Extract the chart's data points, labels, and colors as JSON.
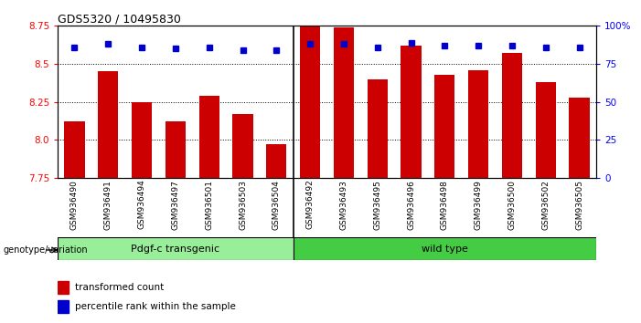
{
  "title": "GDS5320 / 10495830",
  "categories": [
    "GSM936490",
    "GSM936491",
    "GSM936494",
    "GSM936497",
    "GSM936501",
    "GSM936503",
    "GSM936504",
    "GSM936492",
    "GSM936493",
    "GSM936495",
    "GSM936496",
    "GSM936498",
    "GSM936499",
    "GSM936500",
    "GSM936502",
    "GSM936505"
  ],
  "bar_values": [
    8.12,
    8.45,
    8.25,
    8.12,
    8.29,
    8.17,
    7.97,
    8.75,
    8.74,
    8.4,
    8.62,
    8.43,
    8.46,
    8.57,
    8.38,
    8.28
  ],
  "percentile_values": [
    86,
    88,
    86,
    85,
    86,
    84,
    84,
    88,
    88,
    86,
    89,
    87,
    87,
    87,
    86,
    86
  ],
  "bar_color": "#cc0000",
  "percentile_color": "#0000cc",
  "ylim_left": [
    7.75,
    8.75
  ],
  "ylim_right": [
    0,
    100
  ],
  "yticks_left": [
    7.75,
    8.0,
    8.25,
    8.5,
    8.75
  ],
  "yticks_right": [
    0,
    25,
    50,
    75,
    100
  ],
  "ytick_labels_right": [
    "0",
    "25",
    "50",
    "75",
    "100%"
  ],
  "grid_values": [
    8.0,
    8.25,
    8.5
  ],
  "group1_label": "Pdgf-c transgenic",
  "group2_label": "wild type",
  "group1_count": 7,
  "group2_count": 9,
  "group1_color": "#99ee99",
  "group2_color": "#44cc44",
  "genotype_label": "genotype/variation",
  "legend_bar_label": "transformed count",
  "legend_pct_label": "percentile rank within the sample",
  "background_color": "#ffffff",
  "tick_area_color": "#c8c8c8",
  "bar_width": 0.6
}
